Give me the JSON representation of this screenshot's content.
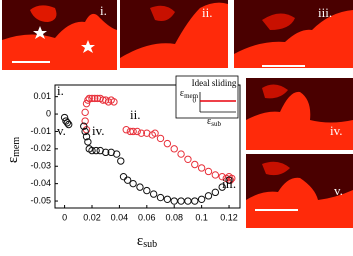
{
  "chart_data": {
    "type": "scatter",
    "xlabel": {
      "symbol": "ε",
      "sub": "sub"
    },
    "ylabel": {
      "symbol": "ε",
      "sub": "mem"
    },
    "xlim": [
      -0.007,
      0.128
    ],
    "ylim": [
      -0.054,
      0.0167
    ],
    "xticks": [
      0,
      0.02,
      0.04,
      0.06,
      0.08,
      0.1,
      0.12
    ],
    "yticks": [
      0.01,
      0,
      -0.01,
      -0.02,
      -0.03,
      -0.04,
      -0.05
    ],
    "annotations": [
      "i.",
      "v.",
      "iv.",
      "ii.",
      "iii."
    ],
    "inset": {
      "title": "Ideal sliding",
      "ylabel": {
        "symbol": "ε",
        "sub": "mem"
      },
      "xlabel": {
        "symbol": "ε",
        "sub": "sub"
      },
      "ytick": 0,
      "line_color": "#e8000b"
    },
    "series": [
      {
        "color": "#e8303a",
        "x": [
          0.016,
          0.017,
          0.018,
          0.02,
          0.022,
          0.024,
          0.026,
          0.028,
          0.03,
          0.032,
          0.034,
          0.036,
          0.015,
          0.015,
          0.016,
          0.045,
          0.048,
          0.05,
          0.053,
          0.056,
          0.06,
          0.064,
          0.066,
          0.07,
          0.075,
          0.08,
          0.085,
          0.09,
          0.095,
          0.1,
          0.105,
          0.11,
          0.115,
          0.118,
          0.12,
          0.121,
          0.122
        ],
        "values": [
          0.006,
          0.008,
          0.009,
          0.009,
          0.009,
          0.009,
          0.009,
          0.008,
          0.008,
          0.007,
          0.008,
          0.007,
          0.001,
          -0.004,
          -0.009,
          -0.009,
          -0.01,
          -0.01,
          -0.01,
          -0.011,
          -0.011,
          -0.012,
          -0.011,
          -0.014,
          -0.017,
          -0.02,
          -0.023,
          -0.026,
          -0.029,
          -0.031,
          -0.033,
          -0.035,
          -0.036,
          -0.037,
          -0.036,
          -0.038,
          -0.037
        ]
      },
      {
        "color": "#111111",
        "x": [
          0,
          0.001,
          0.002,
          0.003,
          0.014,
          0.015,
          0.016,
          0.017,
          0.018,
          0.02,
          0.023,
          0.026,
          0.03,
          0.034,
          0.038,
          0.041,
          0.043,
          0.046,
          0.05,
          0.055,
          0.06,
          0.065,
          0.07,
          0.075,
          0.08,
          0.085,
          0.09,
          0.095,
          0.1,
          0.105,
          0.11,
          0.115,
          0.12
        ],
        "values": [
          -0.002,
          -0.004,
          -0.005,
          -0.006,
          -0.007,
          -0.01,
          -0.013,
          -0.016,
          -0.02,
          -0.021,
          -0.021,
          -0.021,
          -0.022,
          -0.022,
          -0.023,
          -0.027,
          -0.036,
          -0.038,
          -0.04,
          -0.042,
          -0.044,
          -0.046,
          -0.048,
          -0.049,
          -0.05,
          -0.05,
          -0.05,
          -0.05,
          -0.049,
          -0.047,
          -0.045,
          -0.042,
          -0.038
        ]
      }
    ]
  },
  "images": [
    {
      "label": "i."
    },
    {
      "label": "ii."
    },
    {
      "label": "iii."
    },
    {
      "label": "iv."
    },
    {
      "label": "v."
    }
  ]
}
